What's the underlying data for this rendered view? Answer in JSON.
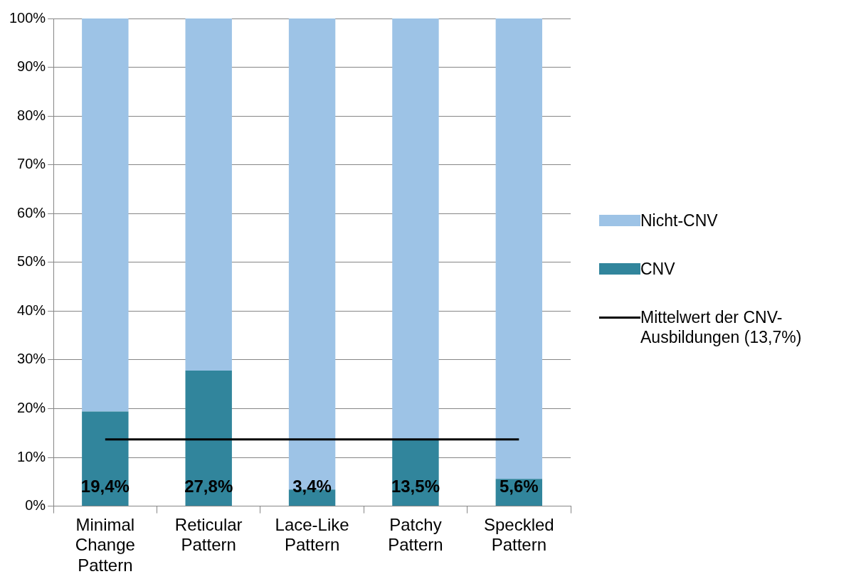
{
  "chart_data": {
    "type": "bar",
    "stacked": true,
    "categories": [
      "Minimal Change Pattern",
      "Reticular Pattern",
      "Lace-Like Pattern",
      "Patchy Pattern",
      "Speckled Pattern"
    ],
    "series": [
      {
        "name": "CNV",
        "color": "#31859c",
        "values": [
          19.4,
          27.8,
          3.4,
          13.5,
          5.6
        ],
        "value_labels": [
          "19,4%",
          "27,8%",
          "3,4%",
          "13,5%",
          "5,6%"
        ]
      },
      {
        "name": "Nicht-CNV",
        "color": "#9dc3e6",
        "values": [
          80.6,
          72.2,
          96.6,
          86.5,
          94.4
        ]
      },
      {
        "name": "Mittelwert der CNV-Ausbildungen (13,7%)",
        "type": "line",
        "color": "#000000",
        "values": [
          13.7,
          13.7,
          13.7,
          13.7,
          13.7
        ]
      }
    ],
    "ylim": [
      0,
      100
    ],
    "yticks": [
      {
        "value": 0,
        "label": "0%"
      },
      {
        "value": 10,
        "label": "10%"
      },
      {
        "value": 20,
        "label": "20%"
      },
      {
        "value": 30,
        "label": "30%"
      },
      {
        "value": 40,
        "label": "40%"
      },
      {
        "value": 50,
        "label": "50%"
      },
      {
        "value": 60,
        "label": "60%"
      },
      {
        "value": 70,
        "label": "70%"
      },
      {
        "value": 80,
        "label": "80%"
      },
      {
        "value": 90,
        "label": "90%"
      },
      {
        "value": 100,
        "label": "100%"
      }
    ],
    "grid": "y",
    "legend": "right",
    "marker": "none"
  }
}
